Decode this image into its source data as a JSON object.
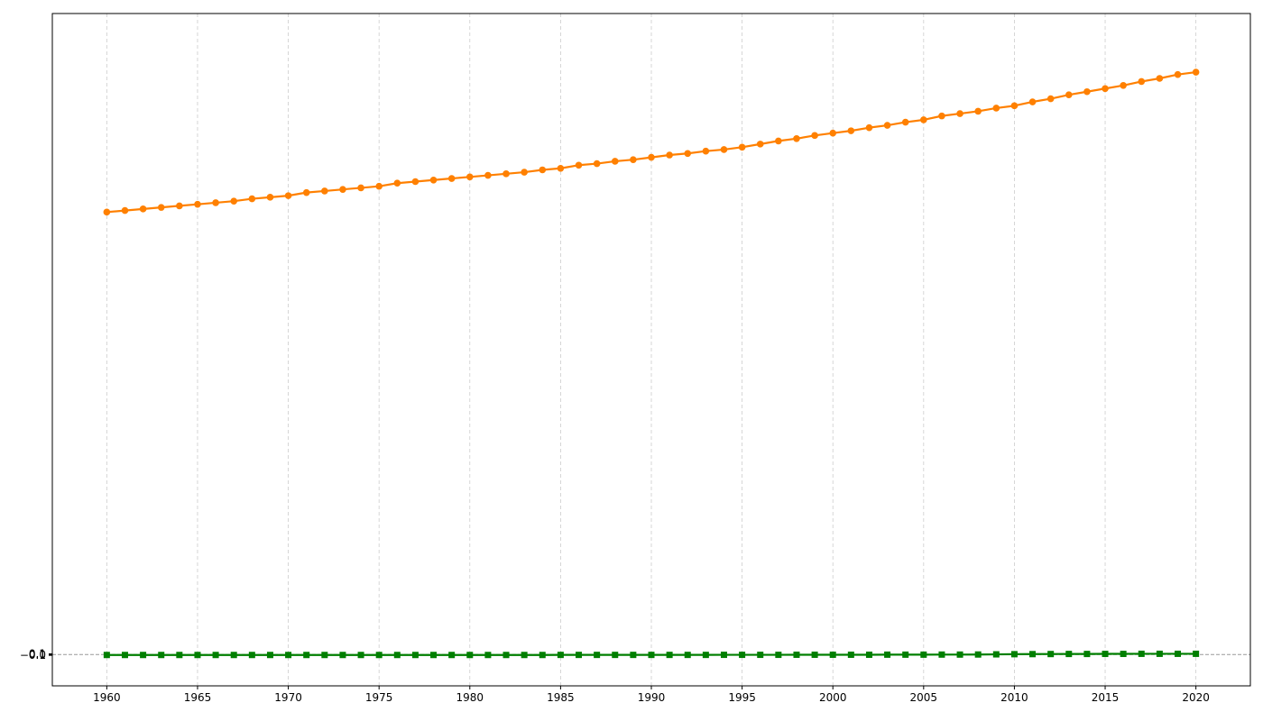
{
  "chart_data": {
    "type": "line",
    "title": "",
    "xlabel": "",
    "ylabel": "",
    "grid": {
      "x": true,
      "y": false
    },
    "legend": "none",
    "x": [
      1960,
      1961,
      1962,
      1963,
      1964,
      1965,
      1966,
      1967,
      1968,
      1969,
      1970,
      1971,
      1972,
      1973,
      1974,
      1975,
      1976,
      1977,
      1978,
      1979,
      1980,
      1981,
      1982,
      1983,
      1984,
      1985,
      1986,
      1987,
      1988,
      1989,
      1990,
      1991,
      1992,
      1993,
      1994,
      1995,
      1996,
      1997,
      1998,
      1999,
      2000,
      2001,
      2002,
      2003,
      2004,
      2005,
      2006,
      2007,
      2008,
      2009,
      2010,
      2011,
      2012,
      2013,
      2014,
      2015,
      2016,
      2017,
      2018,
      2019,
      2020
    ],
    "xlim": [
      1957,
      2023
    ],
    "x_ticks": [
      1960,
      1965,
      1970,
      1975,
      1980,
      1985,
      1990,
      1995,
      2000,
      2005,
      2010,
      2015,
      2020
    ],
    "ylim": [
      -4.0,
      82.0
    ],
    "y_tick_labels": [
      {
        "label": "−0.1",
        "value": -0.1
      },
      {
        "label": "0.0",
        "value": 0.0
      },
      {
        "label": "0.1",
        "value": 0.1
      }
    ],
    "reference_line": {
      "y": 0,
      "color": "#999999",
      "style": "dashed"
    },
    "series": [
      {
        "color": "#ff8000",
        "marker": "circle",
        "values": [
          56.6,
          56.8,
          57.0,
          57.2,
          57.4,
          57.6,
          57.8,
          58.0,
          58.3,
          58.5,
          58.7,
          59.1,
          59.3,
          59.5,
          59.7,
          59.9,
          60.3,
          60.5,
          60.7,
          60.9,
          61.1,
          61.3,
          61.5,
          61.7,
          62.0,
          62.2,
          62.6,
          62.8,
          63.1,
          63.3,
          63.6,
          63.9,
          64.1,
          64.4,
          64.6,
          64.9,
          65.3,
          65.7,
          66.0,
          66.4,
          66.7,
          67.0,
          67.4,
          67.7,
          68.1,
          68.4,
          68.9,
          69.2,
          69.5,
          69.9,
          70.2,
          70.7,
          71.1,
          71.6,
          72.0,
          72.4,
          72.8,
          73.3,
          73.7,
          74.2,
          74.5
        ]
      },
      {
        "color": "#007f00",
        "marker": "square",
        "values": [
          -0.05,
          -0.05,
          -0.05,
          -0.05,
          -0.05,
          -0.05,
          -0.05,
          -0.05,
          -0.05,
          -0.05,
          -0.05,
          -0.05,
          -0.05,
          -0.05,
          -0.05,
          -0.05,
          -0.05,
          -0.05,
          -0.05,
          -0.05,
          -0.05,
          -0.05,
          -0.05,
          -0.05,
          -0.05,
          -0.04,
          -0.04,
          -0.04,
          -0.04,
          -0.04,
          -0.04,
          -0.04,
          -0.04,
          -0.04,
          -0.03,
          -0.03,
          -0.03,
          -0.03,
          -0.02,
          -0.02,
          -0.02,
          -0.02,
          -0.02,
          -0.01,
          -0.01,
          -0.01,
          0.0,
          0.0,
          0.01,
          0.03,
          0.05,
          0.06,
          0.07,
          0.08,
          0.08,
          0.09,
          0.09,
          0.1,
          0.1,
          0.1,
          0.1
        ]
      }
    ]
  }
}
